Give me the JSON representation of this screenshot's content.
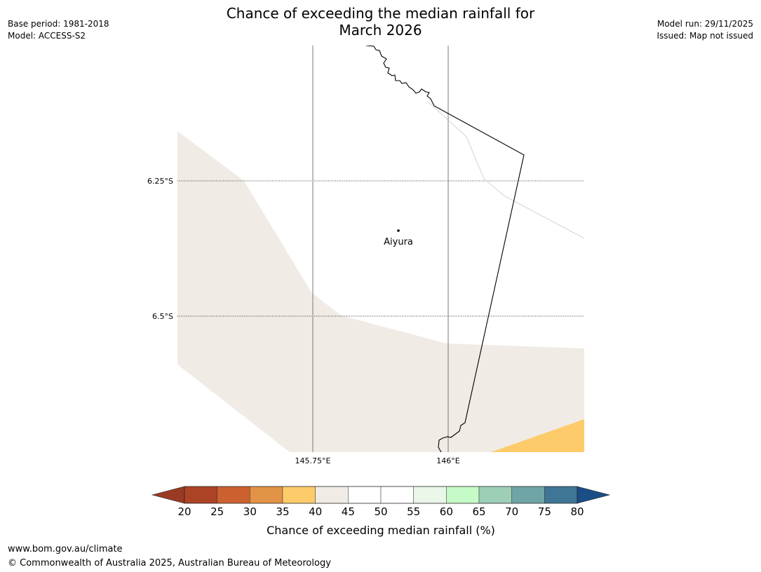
{
  "title": {
    "line1": "Chance of exceeding the median rainfall for",
    "line2": "March 2026"
  },
  "meta": {
    "base_period": "Base period: 1981-2018",
    "model": "Model: ACCESS-S2",
    "model_run": "Model run: 29/11/2025",
    "issued": "Issued: Map not issued"
  },
  "map": {
    "place_label": "Aiyura",
    "lat_labels": [
      "6.25°S",
      "6.5°S"
    ],
    "lon_labels": [
      "145.75°E",
      "146°E"
    ],
    "region_colors": {
      "band_40_45": "#f0ebe5",
      "band_35_40": "#fdcb6a"
    }
  },
  "legend": {
    "title": "Chance of exceeding median rainfall (%)",
    "ticks": [
      "20",
      "25",
      "30",
      "35",
      "40",
      "45",
      "50",
      "55",
      "60",
      "65",
      "70",
      "75",
      "80"
    ],
    "colors": [
      "#ad4325",
      "#cc6130",
      "#e29346",
      "#fdcb6a",
      "#f0ebe5",
      "#ffffff",
      "#ffffff",
      "#e9f6e8",
      "#c6fac6",
      "#9dcfb7",
      "#6fa5a6",
      "#3f7595"
    ],
    "under_color": "#993a22",
    "over_color": "#1a4e86"
  },
  "footer": {
    "url": "www.bom.gov.au/climate",
    "copyright": "© Commonwealth of Australia 2025, Australian Bureau of Meteorology"
  }
}
